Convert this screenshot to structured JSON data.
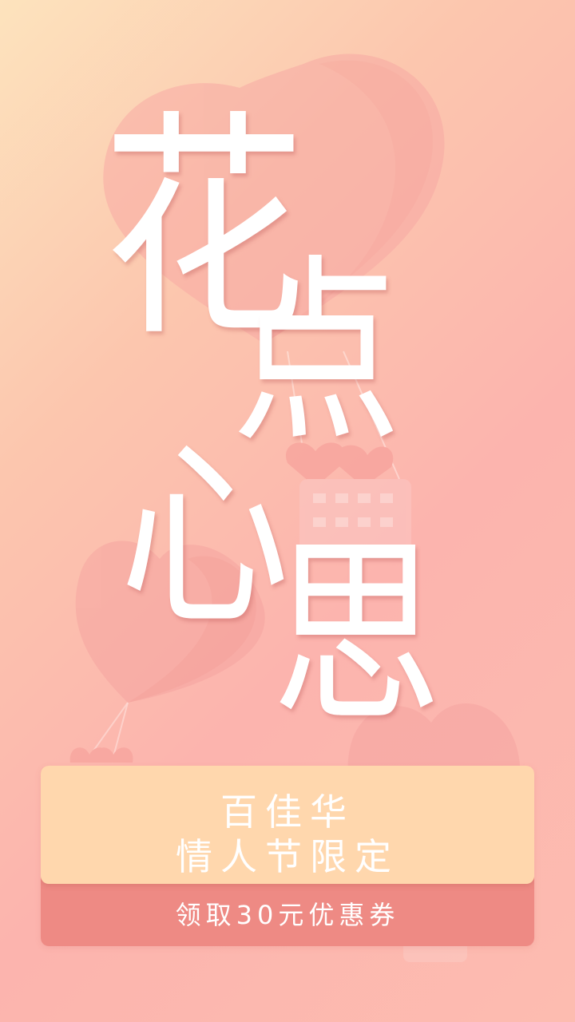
{
  "title": {
    "chars": [
      "花",
      "点",
      "心",
      "思"
    ]
  },
  "card": {
    "brand": "百佳华",
    "subtitle": "情人节限定",
    "coupon_button": "领取30元优惠券"
  },
  "colors": {
    "background_start": "#fde3bd",
    "background_end": "#fdbcb0",
    "card_top": "#ffd7ad",
    "card_bottom": "#ee8a84",
    "text": "#ffffff"
  }
}
